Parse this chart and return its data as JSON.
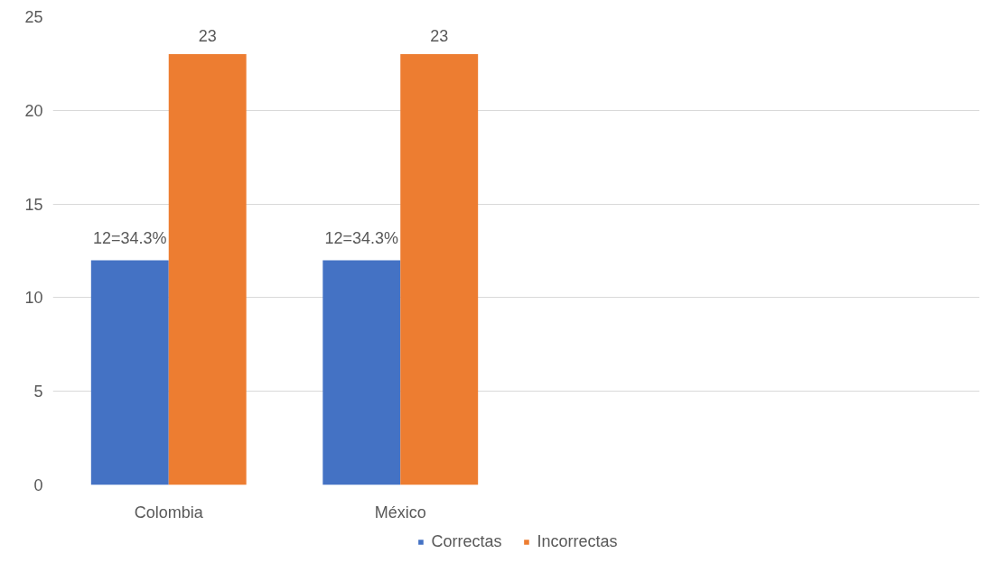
{
  "chart_data": {
    "type": "bar",
    "categories": [
      "Colombia",
      "México",
      null,
      null
    ],
    "series": [
      {
        "name": "Correctas",
        "color": "#4472c4",
        "values": [
          12,
          12,
          null,
          null
        ],
        "value_labels": [
          "12=34.3%",
          "12=34.3%",
          null,
          null
        ]
      },
      {
        "name": "Incorrectas",
        "color": "#ed7d31",
        "values": [
          23,
          23,
          null,
          null
        ],
        "value_labels": [
          "23",
          "23",
          null,
          null
        ]
      }
    ],
    "ylim": [
      0,
      25
    ],
    "yticks": [
      0,
      5,
      10,
      15,
      20,
      25
    ],
    "grid": "y",
    "legend": "bottom"
  }
}
